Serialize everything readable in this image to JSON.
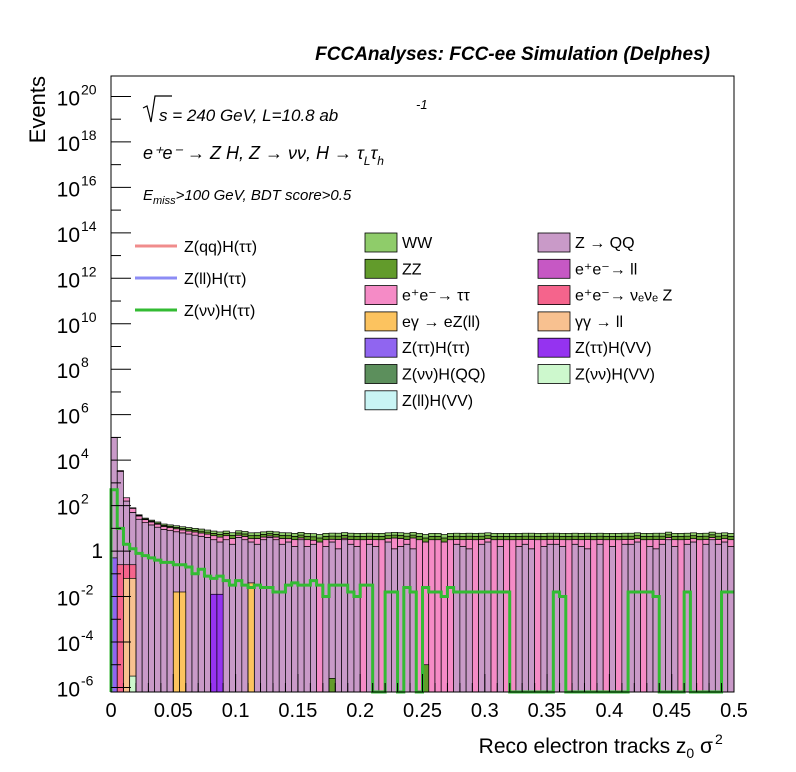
{
  "chart_data": {
    "type": "histogram-stacked",
    "title": "FCCAnalyses: FCC-ee Simulation (Delphes)",
    "xlabel": "Reco electron tracks z",
    "xlabel_sub": "0",
    "xlabel_tail": " σ",
    "xlabel_sup": "2",
    "ylabel": "Events",
    "log_y": true,
    "xlim": [
      0,
      0.5
    ],
    "ylim_exp": [
      -6.2,
      20.9
    ],
    "bins": 100,
    "bin_width": 0.005,
    "x_ticks": [
      "0",
      "0.05",
      "0.1",
      "0.15",
      "0.2",
      "0.25",
      "0.3",
      "0.35",
      "0.4",
      "0.45",
      "0.5"
    ],
    "y_ticks": [
      {
        "base": "10",
        "exp": "20",
        "v": 20
      },
      {
        "base": "10",
        "exp": "18",
        "v": 18
      },
      {
        "base": "10",
        "exp": "16",
        "v": 16
      },
      {
        "base": "10",
        "exp": "14",
        "v": 14
      },
      {
        "base": "10",
        "exp": "12",
        "v": 12
      },
      {
        "base": "10",
        "exp": "10",
        "v": 10
      },
      {
        "base": "10",
        "exp": "8",
        "v": 8
      },
      {
        "base": "10",
        "exp": "6",
        "v": 6
      },
      {
        "base": "10",
        "exp": "4",
        "v": 4
      },
      {
        "base": "10",
        "exp": "2",
        "v": 2
      },
      {
        "base": "1",
        "exp": "",
        "v": 0
      },
      {
        "base": "10",
        "exp": "-2",
        "v": -2
      },
      {
        "base": "10",
        "exp": "-4",
        "v": -4
      },
      {
        "base": "10",
        "exp": "-6",
        "v": -6
      }
    ],
    "annotations": {
      "energy_pre": "s = 240 GeV, L=10.8 ab",
      "energy_sup": "-1",
      "process": "e⁺e⁻ → Z H, Z → νν, H → τ",
      "process_sub1": "L",
      "process_tau": "τ",
      "process_sub2": "h",
      "cut_E": "E",
      "cut_sub": "miss",
      "cut_rest": ">100 GeV, BDT score>0.5"
    },
    "signal_legend": [
      {
        "name": "Z(qq)H(ττ)",
        "color": "#f08c8c"
      },
      {
        "name": "Z(ll)H(ττ)",
        "color": "#8c8cf5"
      },
      {
        "name": "Z(νν)H(ττ)",
        "color": "#33bb33"
      }
    ],
    "background_legend_col1": [
      {
        "name": "WW",
        "color": "#8fcc6a"
      },
      {
        "name": "ZZ",
        "color": "#629b2b"
      },
      {
        "name": "e⁺e⁻→ ττ",
        "color": "#f58bc6"
      },
      {
        "name": "eγ → eZ(ll)",
        "color": "#fcc35f"
      },
      {
        "name": "Z(ττ)H(ττ)",
        "color": "#9065f0"
      },
      {
        "name": "Z(νν)H(QQ)",
        "color": "#5c8f5c"
      },
      {
        "name": "Z(ll)H(VV)",
        "color": "#c9f4f4"
      }
    ],
    "background_legend_col2": [
      {
        "name": "Z → QQ",
        "color": "#c99ac8"
      },
      {
        "name": "e⁺e⁻→ ll",
        "color": "#c658c4"
      },
      {
        "name": "e⁺e⁻→ νₑνₑ Z",
        "color": "#f5648c"
      },
      {
        "name": "γγ → ll",
        "color": "#f8c190"
      },
      {
        "name": "Z(ττ)H(VV)",
        "color": "#9533f0"
      },
      {
        "name": "Z(νν)H(VV)",
        "color": "#cdf8cd"
      }
    ],
    "stack_order": [
      "Z → QQ",
      "e⁺e⁻→ ττ",
      "ZZ",
      "WW"
    ],
    "stack_log10": {
      "Z → QQ": [
        5.0,
        3.5,
        2.2,
        1.7,
        1.4,
        1.25,
        1.15,
        1.05,
        0.95,
        0.9,
        0.85,
        0.8,
        0.75,
        0.7,
        0.65,
        0.6,
        0.5,
        0.4,
        0.5,
        0.3,
        0.6,
        0.5,
        0.4,
        0.3,
        0.5,
        0.6,
        0.5,
        0.3,
        0.4,
        0.2,
        0.5,
        0.2,
        0.3,
        -5,
        0.2,
        0.4,
        0.1,
        0.5,
        0.3,
        0.2,
        -5,
        0.3,
        0.2,
        -5,
        0.4,
        0.1,
        0.2,
        0.3,
        0.1,
        -5,
        -5,
        -5,
        -5,
        -5,
        -5,
        0.3,
        0.2,
        0.1,
        -5,
        0.3,
        0.4,
        -5,
        0.2,
        -5,
        -5,
        0.2,
        0.3,
        0.1,
        -5,
        0.2,
        0.3,
        0.3,
        0.2,
        -5,
        0.3,
        0.2,
        0.1,
        -5,
        0.3,
        -5,
        0.2,
        -5,
        0.3,
        0.3,
        0.4,
        -5,
        0.2,
        0.1,
        0.3,
        0.5,
        0.2,
        -5,
        0.3,
        0.4,
        -5,
        0.3,
        0.5,
        0.3,
        0.4,
        0.2
      ],
      "e⁺e⁻→ ττ": [
        1.5,
        2.5,
        1.8,
        1.4,
        1.0,
        0.8,
        0.7,
        0.6,
        0.5,
        0.45,
        0.4,
        0.35,
        0.3,
        0.28,
        0.25,
        0.2,
        0.2,
        0.2,
        0.2,
        0.2,
        0.0,
        0.1,
        0.0,
        0.2,
        0.0,
        -0.2,
        0.0,
        0.2,
        0.0,
        0.2,
        -0.2,
        0.2,
        0.0,
        0.4,
        0.2,
        -0.1,
        0.3,
        -0.3,
        0.1,
        0.2,
        0.5,
        0.1,
        0.2,
        0.5,
        0.0,
        0.4,
        0.3,
        0.1,
        0.4,
        0.5,
        0.4,
        0.5,
        0.5,
        0.4,
        0.5,
        0.1,
        0.2,
        0.3,
        0.5,
        0.1,
        0.0,
        0.5,
        0.2,
        0.5,
        0.5,
        0.2,
        0.1,
        0.3,
        0.5,
        0.2,
        0.1,
        0.1,
        0.2,
        0.5,
        0.1,
        0.2,
        0.3,
        0.5,
        0.1,
        0.5,
        0.2,
        0.5,
        0.1,
        0.1,
        0.0,
        0.5,
        0.2,
        0.3,
        0.1,
        -0.1,
        0.2,
        0.5,
        0.1,
        0.0,
        0.5,
        0.1,
        -0.1,
        0.1,
        0.0,
        0.2
      ],
      "ZZ": [
        0.6,
        0.4,
        0.3,
        0.3,
        0.25,
        0.2,
        0.2,
        0.2,
        0.15,
        0.15,
        0.15,
        0.15,
        0.15,
        0.1,
        0.1,
        0.1,
        0.1,
        0.1,
        0.1,
        0.1,
        0.1,
        0.1,
        0.1,
        0.1,
        0.1,
        0.1,
        0.1,
        0.1,
        0.1,
        0.1,
        0.1,
        0.1,
        0.1,
        0.1,
        0.1,
        0.1,
        0.1,
        0.1,
        0.1,
        0.1,
        0.1,
        0.1,
        0.1,
        0.1,
        0.1,
        0.1,
        0.1,
        0.1,
        0.1,
        0.1,
        0.1,
        0.1,
        0.1,
        0.1,
        0.1,
        0.1,
        0.1,
        0.1,
        0.1,
        0.1,
        0.1,
        0.1,
        0.1,
        0.1,
        0.1,
        0.1,
        0.1,
        0.1,
        0.1,
        0.1,
        0.1,
        0.1,
        0.1,
        0.1,
        0.1,
        0.1,
        0.1,
        0.1,
        0.1,
        0.1,
        0.1,
        0.1,
        0.1,
        0.1,
        0.1,
        0.1,
        0.1,
        0.1,
        0.1,
        0.1,
        0.1,
        0.1,
        0.1,
        0.1,
        0.1,
        0.1,
        0.1,
        0.1,
        0.1,
        0.1
      ],
      "WW": [
        0.3,
        0.4,
        0.45,
        0.45,
        0.4,
        0.4,
        0.35,
        0.35,
        0.3,
        0.3,
        0.3,
        0.25,
        0.25,
        0.25,
        0.25,
        0.2,
        0.2,
        0.2,
        0.2,
        0.2,
        0.2,
        0.2,
        0.2,
        0.2,
        0.2,
        0.2,
        0.2,
        0.2,
        0.2,
        0.2,
        0.2,
        0.2,
        0.2,
        0.2,
        0.2,
        0.2,
        0.2,
        0.2,
        0.2,
        0.2,
        0.2,
        0.2,
        0.2,
        0.2,
        0.2,
        0.2,
        0.2,
        0.2,
        0.2,
        0.2,
        0.2,
        0.2,
        0.2,
        0.2,
        0.2,
        0.2,
        0.2,
        0.2,
        0.2,
        0.2,
        0.2,
        0.2,
        0.2,
        0.2,
        0.2,
        0.2,
        0.2,
        0.2,
        0.2,
        0.2,
        0.2,
        0.2,
        0.2,
        0.2,
        0.2,
        0.2,
        0.2,
        0.2,
        0.2,
        0.2,
        0.2,
        0.2,
        0.2,
        0.2,
        0.2,
        0.2,
        0.2,
        0.2,
        0.2,
        0.2,
        0.2,
        0.2,
        0.2,
        0.2,
        0.2,
        0.2,
        0.2,
        0.2,
        0.2,
        0.2
      ]
    },
    "foreground_bars_log10": [
      {
        "process": "Z(ll)H(VV)",
        "bins": [
          0
        ],
        "top": -5.5
      },
      {
        "process": "Z(ττ)H(ττ)",
        "bins": [
          0
        ],
        "top": -0.3
      },
      {
        "process": "e⁺e⁻→ νₑνₑ Z",
        "bins": [
          1,
          2,
          3
        ],
        "top": -0.6
      },
      {
        "process": "γγ → ll",
        "bins": [
          2,
          3
        ],
        "top": -1.2
      },
      {
        "process": "Z(νν)H(VV)",
        "bins": [
          3
        ],
        "top": -5.5
      },
      {
        "process": "eγ → eZ(ll)",
        "bins": [
          10,
          11
        ],
        "top": -1.8
      },
      {
        "process": "Z(ττ)H(VV)",
        "bins": [
          16,
          17
        ],
        "top": -1.9
      },
      {
        "process": "eγ → eZ(ll)",
        "bins": [
          22
        ],
        "top": -1.4
      },
      {
        "process": "ZZ",
        "bins": [
          35
        ],
        "top": -5.6
      },
      {
        "process": "ZZ",
        "bins": [
          50
        ],
        "top": -5.0
      }
    ],
    "signal_nunu_log10": [
      2.7,
      1.0,
      0.3,
      0.1,
      -0.1,
      -0.2,
      -0.3,
      -0.4,
      -0.5,
      -0.5,
      -0.6,
      -0.6,
      -0.7,
      -1.0,
      -0.8,
      -1.1,
      -1.2,
      -1.1,
      -1.3,
      -1.5,
      -1.3,
      -1.5,
      -1.6,
      -1.5,
      -1.6,
      -1.6,
      -1.8,
      -1.8,
      -1.5,
      -1.4,
      -1.5,
      -1.5,
      -1.3,
      -1.5,
      -2.0,
      -1.5,
      -1.5,
      -1.5,
      -1.8,
      -2.0,
      -1.5,
      -1.5,
      -6.3,
      -6.3,
      -1.8,
      -1.8,
      -6.3,
      -1.6,
      -1.8,
      -6.3,
      -1.6,
      -1.8,
      -1.8,
      -2.0,
      -1.6,
      -1.8,
      -1.8,
      -1.8,
      -1.8,
      -1.8,
      -1.8,
      -1.8,
      -1.8,
      -1.8,
      -6.3,
      -6.3,
      -6.3,
      -6.3,
      -6.3,
      -6.3,
      -6.3,
      -1.8,
      -2.0,
      -6.3,
      -6.3,
      -6.3,
      -6.3,
      -6.3,
      -6.3,
      -6.3,
      -6.3,
      -6.3,
      -6.3,
      -1.8,
      -1.8,
      -1.8,
      -1.8,
      -2.0,
      -6.3,
      -6.3,
      -6.3,
      -6.3,
      -1.8,
      -6.3,
      -6.3,
      -6.3,
      -6.3,
      -6.3,
      -1.8,
      -1.8
    ]
  }
}
